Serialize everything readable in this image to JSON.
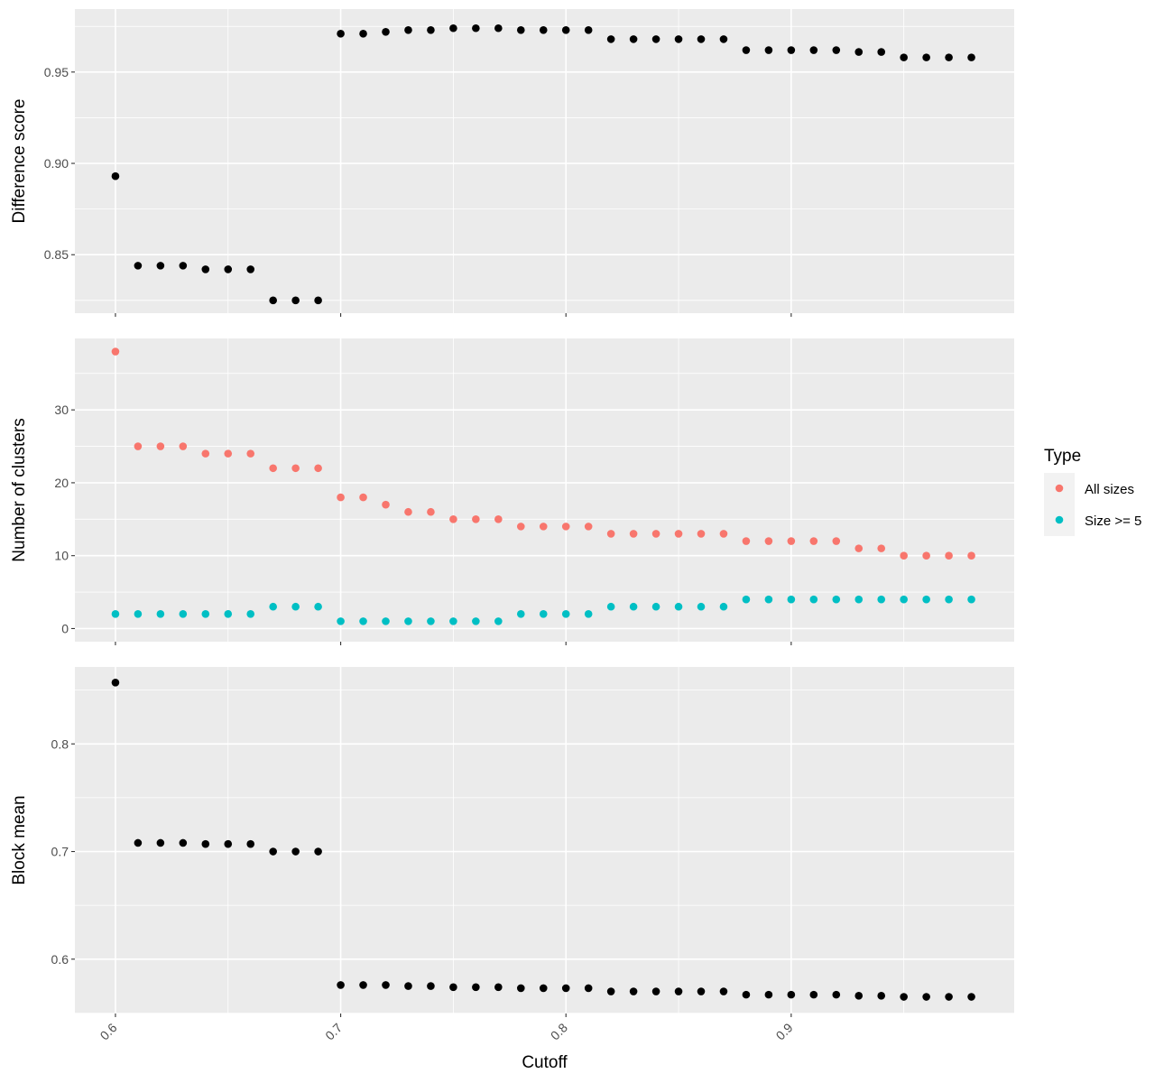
{
  "chart_data": [
    {
      "type": "scatter",
      "ylabel": "Difference score",
      "xlim": [
        0.582,
        0.999
      ],
      "ylim": [
        0.818,
        0.9845
      ],
      "yticks": [
        0.85,
        0.9,
        0.95
      ],
      "ytick_labels": [
        "0.85",
        "0.90",
        "0.95"
      ],
      "grid": true,
      "series": [
        {
          "color": "#000000",
          "x": [
            0.6,
            0.61,
            0.62,
            0.63,
            0.64,
            0.65,
            0.66,
            0.67,
            0.68,
            0.69,
            0.7,
            0.71,
            0.72,
            0.73,
            0.74,
            0.75,
            0.76,
            0.77,
            0.78,
            0.79,
            0.8,
            0.81,
            0.82,
            0.83,
            0.84,
            0.85,
            0.86,
            0.87,
            0.88,
            0.89,
            0.9,
            0.91,
            0.92,
            0.93,
            0.94,
            0.95,
            0.96,
            0.97,
            0.98
          ],
          "y": [
            0.893,
            0.844,
            0.844,
            0.844,
            0.842,
            0.842,
            0.842,
            0.825,
            0.825,
            0.825,
            0.971,
            0.971,
            0.972,
            0.973,
            0.973,
            0.974,
            0.974,
            0.974,
            0.973,
            0.973,
            0.973,
            0.973,
            0.968,
            0.968,
            0.968,
            0.968,
            0.968,
            0.968,
            0.962,
            0.962,
            0.962,
            0.962,
            0.962,
            0.961,
            0.961,
            0.958,
            0.958,
            0.958,
            0.958
          ]
        }
      ]
    },
    {
      "type": "scatter",
      "ylabel": "Number of clusters",
      "xlim": [
        0.582,
        0.999
      ],
      "ylim": [
        -1.8,
        39.8
      ],
      "yticks": [
        0,
        10,
        20,
        30
      ],
      "ytick_labels": [
        "0",
        "10",
        "20",
        "30"
      ],
      "grid": true,
      "legend": {
        "title": "Type",
        "position": "right",
        "entries": [
          {
            "label": "All sizes",
            "color": "#F8766D"
          },
          {
            "label": "Size >= 5",
            "color": "#00BFC4"
          }
        ]
      },
      "series": [
        {
          "name": "All sizes",
          "color": "#F8766D",
          "x": [
            0.6,
            0.61,
            0.62,
            0.63,
            0.64,
            0.65,
            0.66,
            0.67,
            0.68,
            0.69,
            0.7,
            0.71,
            0.72,
            0.73,
            0.74,
            0.75,
            0.76,
            0.77,
            0.78,
            0.79,
            0.8,
            0.81,
            0.82,
            0.83,
            0.84,
            0.85,
            0.86,
            0.87,
            0.88,
            0.89,
            0.9,
            0.91,
            0.92,
            0.93,
            0.94,
            0.95,
            0.96,
            0.97,
            0.98
          ],
          "y": [
            38,
            25,
            25,
            25,
            24,
            24,
            24,
            22,
            22,
            22,
            18,
            18,
            17,
            16,
            16,
            15,
            15,
            15,
            14,
            14,
            14,
            14,
            13,
            13,
            13,
            13,
            13,
            13,
            12,
            12,
            12,
            12,
            12,
            11,
            11,
            10,
            10,
            10,
            10
          ]
        },
        {
          "name": "Size >= 5",
          "color": "#00BFC4",
          "x": [
            0.6,
            0.61,
            0.62,
            0.63,
            0.64,
            0.65,
            0.66,
            0.67,
            0.68,
            0.69,
            0.7,
            0.71,
            0.72,
            0.73,
            0.74,
            0.75,
            0.76,
            0.77,
            0.78,
            0.79,
            0.8,
            0.81,
            0.82,
            0.83,
            0.84,
            0.85,
            0.86,
            0.87,
            0.88,
            0.89,
            0.9,
            0.91,
            0.92,
            0.93,
            0.94,
            0.95,
            0.96,
            0.97,
            0.98
          ],
          "y": [
            2,
            2,
            2,
            2,
            2,
            2,
            2,
            3,
            3,
            3,
            1,
            1,
            1,
            1,
            1,
            1,
            1,
            1,
            2,
            2,
            2,
            2,
            3,
            3,
            3,
            3,
            3,
            3,
            4,
            4,
            4,
            4,
            4,
            4,
            4,
            4,
            4,
            4,
            4
          ]
        }
      ]
    },
    {
      "type": "scatter",
      "ylabel": "Block mean",
      "xlabel": "Cutoff",
      "xlim": [
        0.582,
        0.999
      ],
      "ylim": [
        0.5495,
        0.8715
      ],
      "xticks": [
        0.6,
        0.7,
        0.8,
        0.9
      ],
      "xtick_labels": [
        "0.6",
        "0.7",
        "0.8",
        "0.9"
      ],
      "yticks": [
        0.6,
        0.7,
        0.8
      ],
      "ytick_labels": [
        "0.6",
        "0.7",
        "0.8"
      ],
      "grid": true,
      "series": [
        {
          "color": "#000000",
          "x": [
            0.6,
            0.61,
            0.62,
            0.63,
            0.64,
            0.65,
            0.66,
            0.67,
            0.68,
            0.69,
            0.7,
            0.71,
            0.72,
            0.73,
            0.74,
            0.75,
            0.76,
            0.77,
            0.78,
            0.79,
            0.8,
            0.81,
            0.82,
            0.83,
            0.84,
            0.85,
            0.86,
            0.87,
            0.88,
            0.89,
            0.9,
            0.91,
            0.92,
            0.93,
            0.94,
            0.95,
            0.96,
            0.97,
            0.98
          ],
          "y": [
            0.857,
            0.708,
            0.708,
            0.708,
            0.707,
            0.707,
            0.707,
            0.7,
            0.7,
            0.7,
            0.576,
            0.576,
            0.576,
            0.575,
            0.575,
            0.574,
            0.574,
            0.574,
            0.573,
            0.573,
            0.573,
            0.573,
            0.57,
            0.57,
            0.57,
            0.57,
            0.57,
            0.57,
            0.567,
            0.567,
            0.567,
            0.567,
            0.567,
            0.566,
            0.566,
            0.565,
            0.565,
            0.565,
            0.565
          ]
        }
      ]
    }
  ]
}
